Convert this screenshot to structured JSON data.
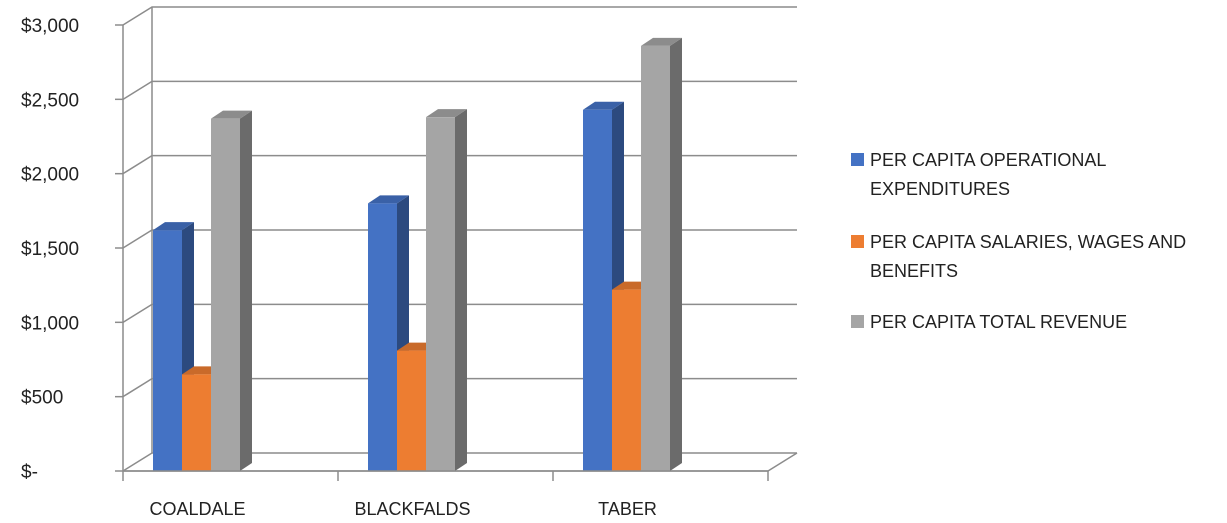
{
  "chart_data": {
    "type": "bar",
    "title": "",
    "xlabel": "",
    "ylabel": "",
    "ylim": [
      0,
      3000
    ],
    "y_tick_labels": [
      "$-",
      "$500",
      "$1,000",
      "$1,500",
      "$2,000",
      "$2,500",
      "$3,000"
    ],
    "categories": [
      "COALDALE",
      "BLACKFALDS",
      "TABER"
    ],
    "grid": true,
    "legend_position": "right",
    "series": [
      {
        "name": "PER CAPITA OPERATIONAL EXPENDITURES",
        "values": [
          1620,
          1800,
          2430
        ],
        "color": "#4472C4"
      },
      {
        "name": "PER CAPITA SALARIES, WAGES AND BENEFITS",
        "values": [
          650,
          810,
          1220
        ],
        "color": "#ED7D31"
      },
      {
        "name": "PER CAPITA TOTAL REVENUE",
        "values": [
          2370,
          2380,
          2860
        ],
        "color": "#A5A5A5"
      }
    ]
  }
}
